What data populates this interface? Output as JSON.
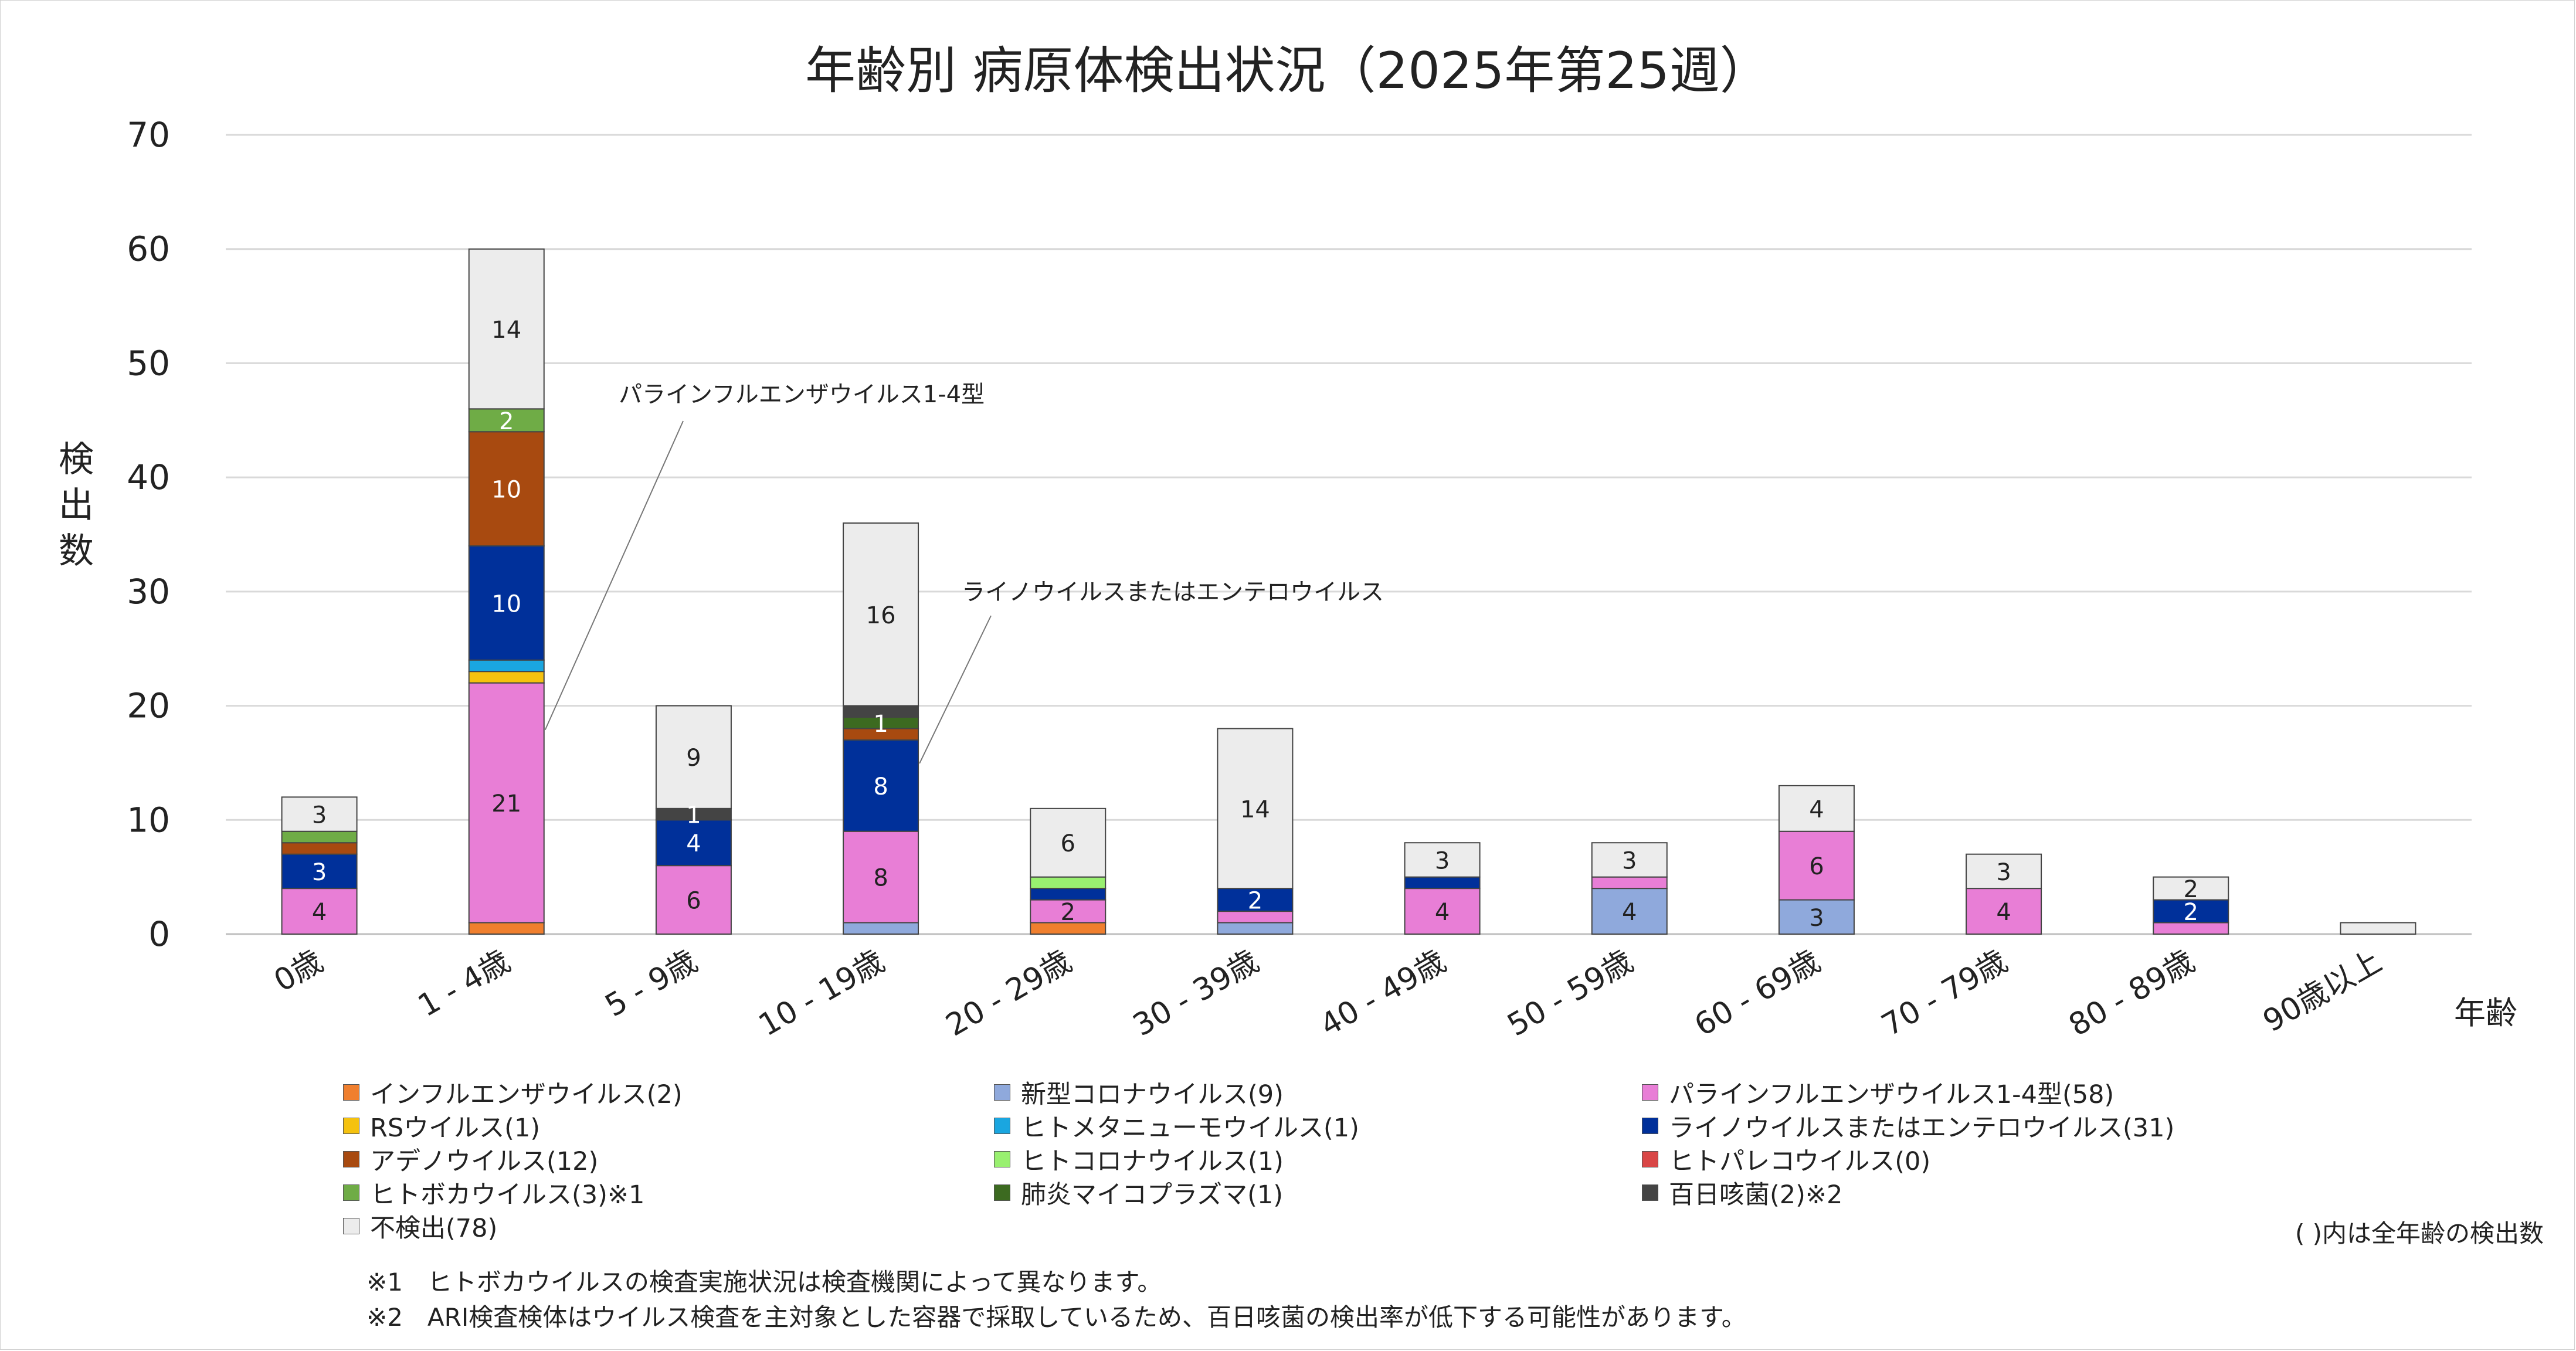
{
  "chart_data": {
    "type": "bar",
    "stacked": true,
    "title": "年齢別 病原体検出状況（2025年第25週）",
    "ylabel": "検出数",
    "xlabel": "年齢",
    "ylim": [
      0,
      70
    ],
    "yticks": [
      "0",
      "10",
      "20",
      "30",
      "40",
      "50",
      "60",
      "70"
    ],
    "grid": true,
    "legend_position": "bottom",
    "categories": [
      "0歳",
      "1 - 4歳",
      "5 - 9歳",
      "10 - 19歳",
      "20 - 29歳",
      "30 - 39歳",
      "40 - 49歳",
      "50 - 59歳",
      "60 - 69歳",
      "70 - 79歳",
      "80 - 89歳",
      "90歳以上"
    ],
    "series": [
      {
        "name": "インフルエンザウイルス(2)",
        "color": "#f07f2e",
        "values": [
          0,
          1,
          0,
          0,
          1,
          0,
          0,
          0,
          0,
          0,
          0,
          0
        ]
      },
      {
        "name": "新型コロナウイルス(9)",
        "color": "#8fa9dc",
        "values": [
          0,
          0,
          0,
          1,
          0,
          1,
          0,
          4,
          3,
          0,
          0,
          0
        ]
      },
      {
        "name": "パラインフルエンザウイルス1-4型(58)",
        "color": "#e87ed6",
        "values": [
          4,
          21,
          6,
          8,
          2,
          1,
          4,
          1,
          6,
          4,
          1,
          0
        ]
      },
      {
        "name": "RSウイルス(1)",
        "color": "#f5c20f",
        "values": [
          0,
          1,
          0,
          0,
          0,
          0,
          0,
          0,
          0,
          0,
          0,
          0
        ]
      },
      {
        "name": "ヒトメタニューモウイルス(1)",
        "color": "#1aa6e0",
        "values": [
          0,
          1,
          0,
          0,
          0,
          0,
          0,
          0,
          0,
          0,
          0,
          0
        ]
      },
      {
        "name": "ライノウイルスまたはエンテロウイルス(31)",
        "color": "#00309a",
        "values": [
          3,
          10,
          4,
          8,
          1,
          2,
          1,
          0,
          0,
          0,
          2,
          0
        ]
      },
      {
        "name": "アデノウイルス(12)",
        "color": "#a84a10",
        "values": [
          1,
          10,
          0,
          1,
          0,
          0,
          0,
          0,
          0,
          0,
          0,
          0
        ]
      },
      {
        "name": "ヒトコロナウイルス(1)",
        "color": "#99f070",
        "values": [
          0,
          0,
          0,
          0,
          1,
          0,
          0,
          0,
          0,
          0,
          0,
          0
        ]
      },
      {
        "name": "ヒトパレコウイルス(0)",
        "color": "#d94646",
        "values": [
          0,
          0,
          0,
          0,
          0,
          0,
          0,
          0,
          0,
          0,
          0,
          0
        ]
      },
      {
        "name": "ヒトボカウイルス(3)※1",
        "color": "#6fac46",
        "values": [
          1,
          2,
          0,
          0,
          0,
          0,
          0,
          0,
          0,
          0,
          0,
          0
        ]
      },
      {
        "name": "肺炎マイコプラズマ(1)",
        "color": "#3c6a20",
        "values": [
          0,
          0,
          0,
          1,
          0,
          0,
          0,
          0,
          0,
          0,
          0,
          0
        ]
      },
      {
        "name": "百日咳菌(2)※2",
        "color": "#444444",
        "values": [
          0,
          0,
          1,
          1,
          0,
          0,
          0,
          0,
          0,
          0,
          0,
          0
        ]
      },
      {
        "name": "不検出(78)",
        "color": "#ececec",
        "values": [
          3,
          14,
          9,
          16,
          6,
          14,
          3,
          3,
          4,
          3,
          2,
          1
        ]
      }
    ],
    "data_labels": [
      {
        "category": 0,
        "series": 2,
        "text": "4"
      },
      {
        "category": 0,
        "series": 5,
        "text": "3"
      },
      {
        "category": 0,
        "series": 12,
        "text": "3"
      },
      {
        "category": 1,
        "series": 2,
        "text": "21"
      },
      {
        "category": 1,
        "series": 5,
        "text": "10"
      },
      {
        "category": 1,
        "series": 6,
        "text": "10"
      },
      {
        "category": 1,
        "series": 9,
        "text": "2"
      },
      {
        "category": 1,
        "series": 12,
        "text": "14"
      },
      {
        "category": 2,
        "series": 2,
        "text": "6"
      },
      {
        "category": 2,
        "series": 5,
        "text": "4"
      },
      {
        "category": 2,
        "series": 11,
        "text": "1"
      },
      {
        "category": 2,
        "series": 12,
        "text": "9"
      },
      {
        "category": 3,
        "series": 2,
        "text": "8"
      },
      {
        "category": 3,
        "series": 5,
        "text": "8"
      },
      {
        "category": 3,
        "series": 10,
        "text": "1"
      },
      {
        "category": 3,
        "series": 12,
        "text": "16"
      },
      {
        "category": 4,
        "series": 2,
        "text": "2"
      },
      {
        "category": 4,
        "series": 12,
        "text": "6"
      },
      {
        "category": 5,
        "series": 5,
        "text": "2"
      },
      {
        "category": 5,
        "series": 12,
        "text": "14"
      },
      {
        "category": 6,
        "series": 2,
        "text": "4"
      },
      {
        "category": 6,
        "series": 12,
        "text": "3"
      },
      {
        "category": 7,
        "series": 1,
        "text": "4"
      },
      {
        "category": 7,
        "series": 12,
        "text": "3"
      },
      {
        "category": 8,
        "series": 1,
        "text": "3"
      },
      {
        "category": 8,
        "series": 2,
        "text": "6"
      },
      {
        "category": 8,
        "series": 12,
        "text": "4"
      },
      {
        "category": 9,
        "series": 2,
        "text": "4"
      },
      {
        "category": 9,
        "series": 12,
        "text": "3"
      },
      {
        "category": 10,
        "series": 5,
        "text": "2"
      },
      {
        "category": 10,
        "series": 12,
        "text": "2"
      }
    ],
    "annotations": [
      {
        "text": "パラインフルエンザウイルス1-4型",
        "category": 1,
        "series": 2
      },
      {
        "text": "ライノウイルスまたはエンテロウイルス",
        "category": 3,
        "series": 5
      }
    ]
  },
  "legend_note": "( )内は全年齢の検出数",
  "footnotes": [
    "※1　ヒトボカウイルスの検査実施状況は検査機関によって異なります。",
    "※2　ARI検査検体はウイルス検査を主対象とした容器で採取しているため、百日咳菌の検出率が低下する可能性があります。"
  ]
}
